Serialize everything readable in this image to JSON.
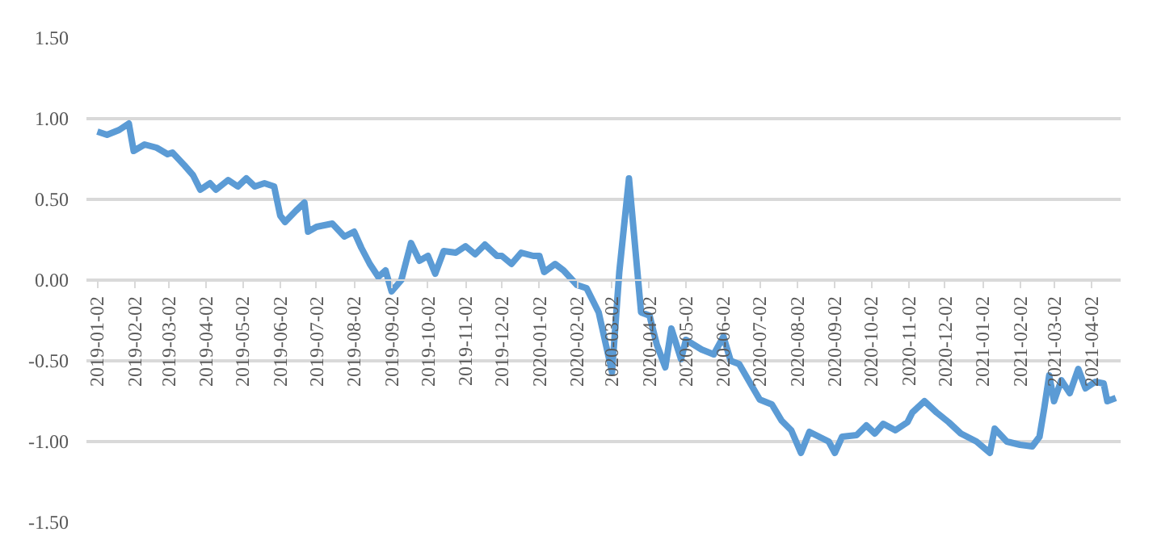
{
  "chart_data": {
    "type": "line",
    "x": [
      "2019-01-02",
      "2019-01-10",
      "2019-01-20",
      "2019-01-28",
      "2019-02-01",
      "2019-02-10",
      "2019-02-20",
      "2019-03-01",
      "2019-03-05",
      "2019-03-15",
      "2019-03-22",
      "2019-03-28",
      "2019-04-05",
      "2019-04-10",
      "2019-04-20",
      "2019-04-28",
      "2019-05-05",
      "2019-05-12",
      "2019-05-20",
      "2019-05-28",
      "2019-06-02",
      "2019-06-06",
      "2019-06-15",
      "2019-06-22",
      "2019-06-25",
      "2019-07-02",
      "2019-07-15",
      "2019-07-25",
      "2019-08-02",
      "2019-08-08",
      "2019-08-15",
      "2019-08-22",
      "2019-08-28",
      "2019-09-02",
      "2019-09-10",
      "2019-09-18",
      "2019-09-25",
      "2019-10-02",
      "2019-10-08",
      "2019-10-15",
      "2019-10-25",
      "2019-11-02",
      "2019-11-10",
      "2019-11-18",
      "2019-11-28",
      "2019-12-02",
      "2019-12-10",
      "2019-12-18",
      "2019-12-28",
      "2020-01-02",
      "2020-01-06",
      "2020-01-15",
      "2020-01-22",
      "2020-02-02",
      "2020-02-10",
      "2020-02-20",
      "2020-03-02",
      "2020-03-08",
      "2020-03-16",
      "2020-03-22",
      "2020-03-26",
      "2020-04-02",
      "2020-04-08",
      "2020-04-15",
      "2020-04-20",
      "2020-04-28",
      "2020-05-02",
      "2020-05-15",
      "2020-05-25",
      "2020-06-02",
      "2020-06-08",
      "2020-06-15",
      "2020-06-25",
      "2020-07-02",
      "2020-07-12",
      "2020-07-20",
      "2020-07-28",
      "2020-08-05",
      "2020-08-12",
      "2020-08-20",
      "2020-08-28",
      "2020-09-02",
      "2020-09-08",
      "2020-09-20",
      "2020-09-28",
      "2020-10-05",
      "2020-10-12",
      "2020-10-22",
      "2020-11-01",
      "2020-11-05",
      "2020-11-15",
      "2020-11-25",
      "2020-12-05",
      "2020-12-15",
      "2020-12-28",
      "2021-01-08",
      "2021-01-12",
      "2021-01-22",
      "2021-02-02",
      "2021-02-12",
      "2021-02-18",
      "2021-02-22",
      "2021-02-26",
      "2021-03-02",
      "2021-03-08",
      "2021-03-15",
      "2021-03-22",
      "2021-03-28",
      "2021-04-05",
      "2021-04-12",
      "2021-04-15",
      "2021-04-22"
    ],
    "series": [
      {
        "color": "#5b9bd5",
        "values": [
          0.92,
          0.9,
          0.93,
          0.97,
          0.8,
          0.84,
          0.82,
          0.78,
          0.79,
          0.71,
          0.65,
          0.56,
          0.6,
          0.56,
          0.62,
          0.58,
          0.63,
          0.58,
          0.6,
          0.58,
          0.4,
          0.36,
          0.43,
          0.48,
          0.3,
          0.33,
          0.35,
          0.27,
          0.3,
          0.2,
          0.1,
          0.02,
          0.06,
          -0.07,
          0.0,
          0.23,
          0.12,
          0.15,
          0.04,
          0.18,
          0.17,
          0.21,
          0.16,
          0.22,
          0.15,
          0.15,
          0.1,
          0.17,
          0.15,
          0.15,
          0.05,
          0.1,
          0.06,
          -0.03,
          -0.05,
          -0.2,
          -0.57,
          0.05,
          0.63,
          0.13,
          -0.2,
          -0.22,
          -0.4,
          -0.54,
          -0.3,
          -0.49,
          -0.37,
          -0.43,
          -0.46,
          -0.35,
          -0.5,
          -0.52,
          -0.65,
          -0.74,
          -0.77,
          -0.87,
          -0.93,
          -1.07,
          -0.94,
          -0.97,
          -1.0,
          -1.07,
          -0.97,
          -0.96,
          -0.9,
          -0.95,
          -0.89,
          -0.93,
          -0.88,
          -0.82,
          -0.75,
          -0.82,
          -0.88,
          -0.95,
          -1.0,
          -1.07,
          -0.92,
          -1.0,
          -1.02,
          -1.03,
          -0.97,
          -0.79,
          -0.59,
          -0.75,
          -0.62,
          -0.7,
          -0.55,
          -0.67,
          -0.63,
          -0.64,
          -0.75,
          -0.73
        ]
      }
    ],
    "xlim": [
      "2018-12-24",
      "2021-04-26"
    ],
    "xticks": [
      "2019-01-02",
      "2019-02-02",
      "2019-03-02",
      "2019-04-02",
      "2019-05-02",
      "2019-06-02",
      "2019-07-02",
      "2019-08-02",
      "2019-09-02",
      "2019-10-02",
      "2019-11-02",
      "2019-12-02",
      "2020-01-02",
      "2020-02-02",
      "2020-03-02",
      "2020-04-02",
      "2020-05-02",
      "2020-06-02",
      "2020-07-02",
      "2020-08-02",
      "2020-09-02",
      "2020-10-02",
      "2020-11-02",
      "2020-12-02",
      "2021-01-02",
      "2021-02-02",
      "2021-03-02",
      "2021-04-02"
    ],
    "ylim": [
      -1.5,
      1.5
    ],
    "yticks": [
      {
        "value": -1.5,
        "label": "-1.50"
      },
      {
        "value": -1.0,
        "label": "-1.00"
      },
      {
        "value": -0.5,
        "label": "-0.50"
      },
      {
        "value": 0,
        "label": "0.00"
      },
      {
        "value": 0.5,
        "label": "0.50"
      },
      {
        "value": 1.0,
        "label": "1.00"
      },
      {
        "value": 1.5,
        "label": "1.50"
      }
    ],
    "grid": "y",
    "marker": "none",
    "line_style": "solid"
  }
}
